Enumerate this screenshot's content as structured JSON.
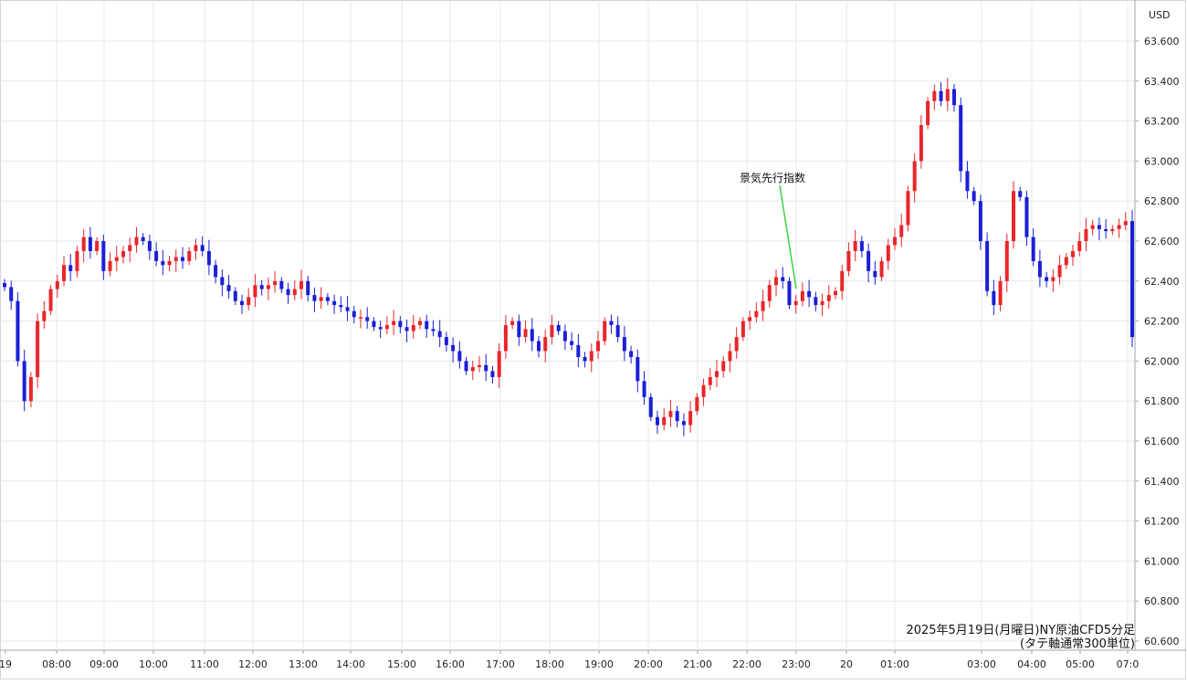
{
  "chart_data": {
    "type": "candlestick",
    "title": [
      "2025年5月19日(月曜日)NY原油CFD5分足",
      "(タテ軸通常300単位)"
    ],
    "currency": "USD",
    "ylim": [
      60.5,
      63.75
    ],
    "y_ticks": [
      "60.600",
      "60.800",
      "61.000",
      "61.200",
      "61.400",
      "61.600",
      "61.800",
      "62.000",
      "62.200",
      "62.400",
      "62.600",
      "62.800",
      "63.000",
      "63.200",
      "63.400",
      "63.600"
    ],
    "x_ticks": [
      "19",
      "08:00",
      "09:00",
      "10:00",
      "11:00",
      "12:00",
      "13:00",
      "14:00",
      "15:00",
      "16:00",
      "17:00",
      "18:00",
      "19:00",
      "20:00",
      "21:00",
      "22:00",
      "23:00",
      "20",
      "01:00",
      "03:00",
      "04:00",
      "05:00",
      "07:0"
    ],
    "grid": true,
    "up_color": "#e8262a",
    "down_color": "#1a1fd6",
    "annotation": {
      "text": "景気先行指数",
      "color": "#39d33f"
    },
    "series": [
      62.37,
      62.3,
      62.0,
      61.8,
      61.92,
      62.2,
      62.25,
      62.36,
      62.4,
      62.48,
      62.45,
      62.55,
      62.62,
      62.55,
      62.6,
      62.45,
      62.5,
      62.52,
      62.55,
      62.58,
      62.62,
      62.6,
      62.55,
      62.5,
      62.48,
      62.5,
      62.52,
      62.5,
      62.55,
      62.58,
      62.55,
      62.48,
      62.42,
      62.38,
      62.35,
      62.3,
      62.28,
      62.32,
      62.38,
      62.36,
      62.38,
      62.4,
      62.36,
      62.33,
      62.36,
      62.4,
      62.33,
      62.3,
      62.32,
      62.3,
      62.28,
      62.27,
      62.25,
      62.22,
      62.22,
      62.2,
      62.17,
      62.16,
      62.18,
      62.2,
      62.17,
      62.15,
      62.18,
      62.2,
      62.16,
      62.15,
      62.12,
      62.08,
      62.05,
      62.0,
      61.95,
      61.97,
      61.98,
      61.95,
      61.92,
      62.05,
      62.18,
      62.2,
      62.12,
      62.16,
      62.1,
      62.05,
      62.12,
      62.18,
      62.15,
      62.1,
      62.08,
      62.02,
      62.0,
      62.05,
      62.1,
      62.2,
      62.18,
      62.12,
      62.05,
      62.02,
      61.9,
      61.82,
      61.72,
      61.68,
      61.72,
      61.75,
      61.7,
      61.68,
      61.75,
      61.82,
      61.88,
      61.92,
      61.95,
      62.0,
      62.05,
      62.12,
      62.2,
      62.22,
      62.25,
      62.3,
      62.38,
      62.42,
      62.4,
      62.28,
      62.3,
      62.35,
      62.32,
      62.28,
      62.3,
      62.33,
      62.35,
      62.45,
      62.55,
      62.6,
      62.55,
      62.45,
      62.42,
      62.5,
      62.58,
      62.62,
      62.68,
      62.85,
      63.0,
      63.18,
      63.3,
      63.35,
      63.3,
      63.36,
      63.28,
      62.95,
      62.85,
      62.8,
      62.6,
      62.35,
      62.28,
      62.4,
      62.6,
      62.85,
      62.82,
      62.62,
      62.5,
      62.42,
      62.4,
      62.42,
      62.48,
      62.52,
      62.55,
      62.6,
      62.66,
      62.68,
      62.66,
      62.65,
      62.66,
      62.68,
      62.7,
      62.12
    ]
  }
}
